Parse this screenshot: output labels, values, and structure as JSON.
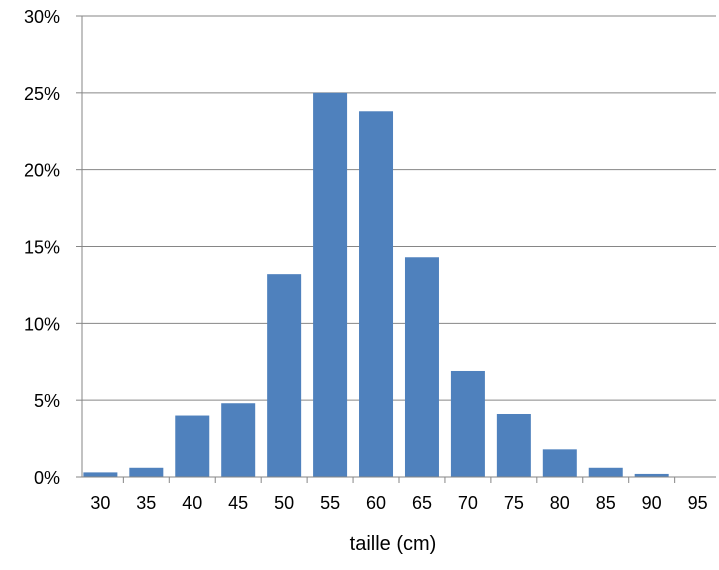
{
  "chart_data": {
    "type": "bar",
    "title": "",
    "xlabel": "taille (cm)",
    "ylabel": "",
    "categories": [
      "30",
      "35",
      "40",
      "45",
      "50",
      "55",
      "60",
      "65",
      "70",
      "75",
      "80",
      "85",
      "90",
      "95"
    ],
    "values": [
      0.3,
      0.6,
      4.0,
      4.8,
      13.2,
      25.0,
      23.8,
      14.3,
      6.9,
      4.1,
      1.8,
      0.6,
      0.2,
      0.0
    ],
    "y_unit": "%",
    "ylim": [
      0,
      30
    ],
    "y_ticks": [
      0,
      5,
      10,
      15,
      20,
      25,
      30
    ],
    "y_tick_labels": [
      "0%",
      "5%",
      "10%",
      "15%",
      "20%",
      "25%",
      "30%"
    ],
    "grid": true,
    "bar_color": "#4f81bd",
    "grid_color": "#868686"
  }
}
